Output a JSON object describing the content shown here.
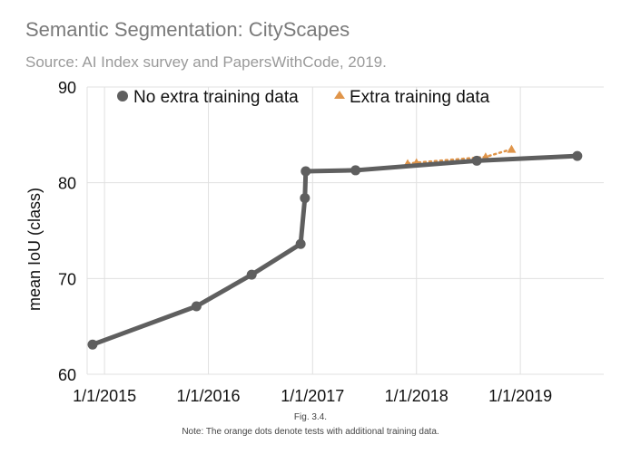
{
  "title": "Semantic Segmentation: CityScapes",
  "subtitle": "Source: AI Index survey and PapersWithCode, 2019.",
  "figure_label": "Fig. 3.4.",
  "note": "Note: The orange dots denote tests with additional training data.",
  "colors": {
    "series_main": "#5f5f5f",
    "series_extra": "#e0954a",
    "grid": "#e0e0e0"
  },
  "chart_data": {
    "type": "line",
    "ylabel": "mean IoU (class)",
    "xlabel": "",
    "ylim": [
      60,
      90
    ],
    "yticks": [
      60,
      70,
      80,
      90
    ],
    "xlim": [
      "2014-11-01",
      "2019-10-21"
    ],
    "xticks": [
      "1/1/2015",
      "1/1/2016",
      "1/1/2017",
      "1/1/2018",
      "1/1/2019"
    ],
    "grid": true,
    "legend_position": "top",
    "series": [
      {
        "name": "No extra training data",
        "marker": "circle",
        "points": [
          {
            "x": "2014-11-20",
            "y": 63.1
          },
          {
            "x": "2015-11-20",
            "y": 67.1
          },
          {
            "x": "2016-06-01",
            "y": 70.4
          },
          {
            "x": "2016-11-20",
            "y": 73.6
          },
          {
            "x": "2016-12-05",
            "y": 78.4
          },
          {
            "x": "2016-12-08",
            "y": 81.2
          },
          {
            "x": "2017-06-01",
            "y": 81.3
          },
          {
            "x": "2018-08-01",
            "y": 82.3
          },
          {
            "x": "2019-07-20",
            "y": 82.8
          }
        ]
      },
      {
        "name": "Extra training data",
        "marker": "triangle",
        "points": [
          {
            "x": "2017-12-01",
            "y": 82.0
          },
          {
            "x": "2018-01-01",
            "y": 82.1
          },
          {
            "x": "2018-09-01",
            "y": 82.7
          },
          {
            "x": "2018-12-01",
            "y": 83.5
          }
        ]
      }
    ]
  }
}
